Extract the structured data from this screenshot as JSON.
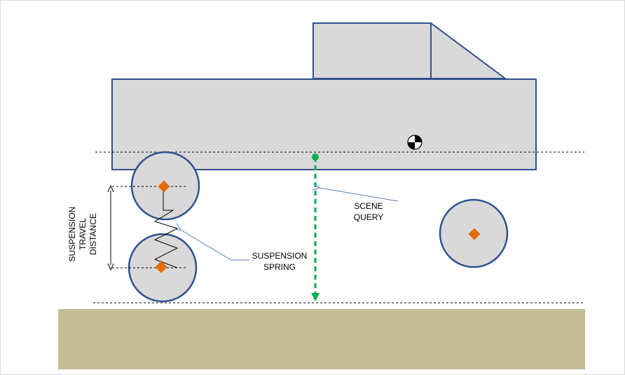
{
  "labels": {
    "suspension_travel": [
      "SUSPENSION",
      "TRAVEL",
      "DISTANCE"
    ],
    "suspension_spring": [
      "SUSPENSION",
      "SPRING"
    ],
    "scene_query": [
      "SCENE",
      "QUERY"
    ]
  },
  "colors": {
    "body_fill": "#d9d9d9",
    "outline": "#2f528f",
    "wheel_center": "#e36c0a",
    "raycast": "#00b050",
    "ground": "#c4bd97",
    "annotation_line": "#4f81bd"
  },
  "icons": {
    "center_of_mass": "center-of-mass-icon",
    "wheel_center": "wheel-center-marker-icon"
  }
}
